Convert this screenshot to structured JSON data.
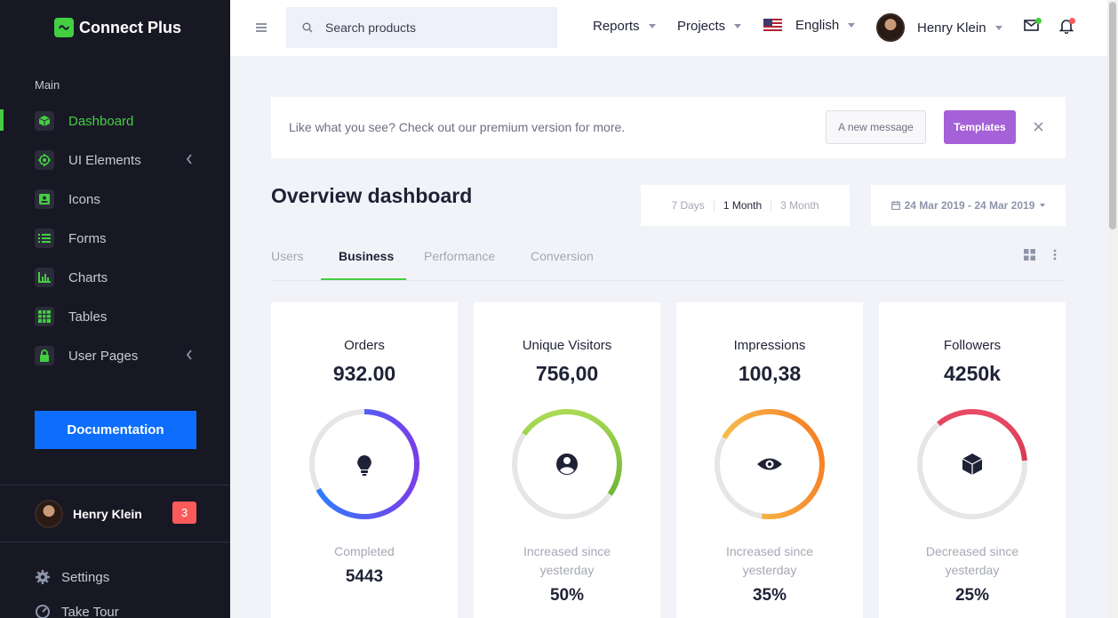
{
  "app": {
    "name": "Connect Plus"
  },
  "sidebar": {
    "section_label": "Main",
    "items": [
      {
        "label": "Dashboard",
        "icon": "cube-icon",
        "active": true
      },
      {
        "label": "UI Elements",
        "icon": "crosshair-icon",
        "has_children": true
      },
      {
        "label": "Icons",
        "icon": "contact-card-icon"
      },
      {
        "label": "Forms",
        "icon": "list-icon"
      },
      {
        "label": "Charts",
        "icon": "bar-chart-icon"
      },
      {
        "label": "Tables",
        "icon": "table-grid-icon"
      },
      {
        "label": "User Pages",
        "icon": "lock-icon",
        "has_children": true
      }
    ],
    "documentation_label": "Documentation",
    "user_name": "Henry Klein",
    "badge_count": "3",
    "settings_label": "Settings",
    "tour_label": "Take Tour"
  },
  "topbar": {
    "search_placeholder": "Search products",
    "reports_label": "Reports",
    "projects_label": "Projects",
    "language_label": "English",
    "user_name": "Henry Klein"
  },
  "banner": {
    "text": "Like what you see? Check out our premium version for more.",
    "message_button": "A new message",
    "templates_button": "Templates"
  },
  "main": {
    "title": "Overview dashboard",
    "ranges": [
      "7 Days",
      "1 Month",
      "3 Month"
    ],
    "selected_range": "1 Month",
    "date_range": "24 Mar 2019 - 24 Mar 2019",
    "tabs": [
      "Users",
      "Business",
      "Performance",
      "Conversion"
    ],
    "active_tab": "Business"
  },
  "cards": [
    {
      "title": "Orders",
      "value": "932.00",
      "sub": "Completed",
      "stat": "5443",
      "icon": "lightbulb-icon",
      "progress": 0.67
    },
    {
      "title": "Unique Visitors",
      "value": "756,00",
      "sub": "Increased since yesterday",
      "stat": "50%",
      "icon": "user-circle-icon",
      "progress": 0.5
    },
    {
      "title": "Impressions",
      "value": "100,38",
      "sub": "Increased since yesterday",
      "stat": "35%",
      "icon": "eye-icon",
      "progress": 0.69
    },
    {
      "title": "Followers",
      "value": "4250k",
      "sub": "Decreased since yesterday",
      "stat": "25%",
      "icon": "cube-icon",
      "progress": 0.35
    }
  ],
  "colors": {
    "accent": "#44ce42",
    "sidebar_bg": "#181824",
    "documentation_button": "#0d6efd",
    "templates_button": "#a461d8",
    "badge": "#fc5a5a",
    "orders_ring": [
      "#2b80ff",
      "#7a3ee8"
    ],
    "visitors_ring": [
      "#b7e35b",
      "#5aa82c"
    ],
    "impressions_ring": [
      "#f7d45a",
      "#f6731e"
    ],
    "followers_ring": [
      "#f1536e",
      "#b8152e"
    ]
  }
}
